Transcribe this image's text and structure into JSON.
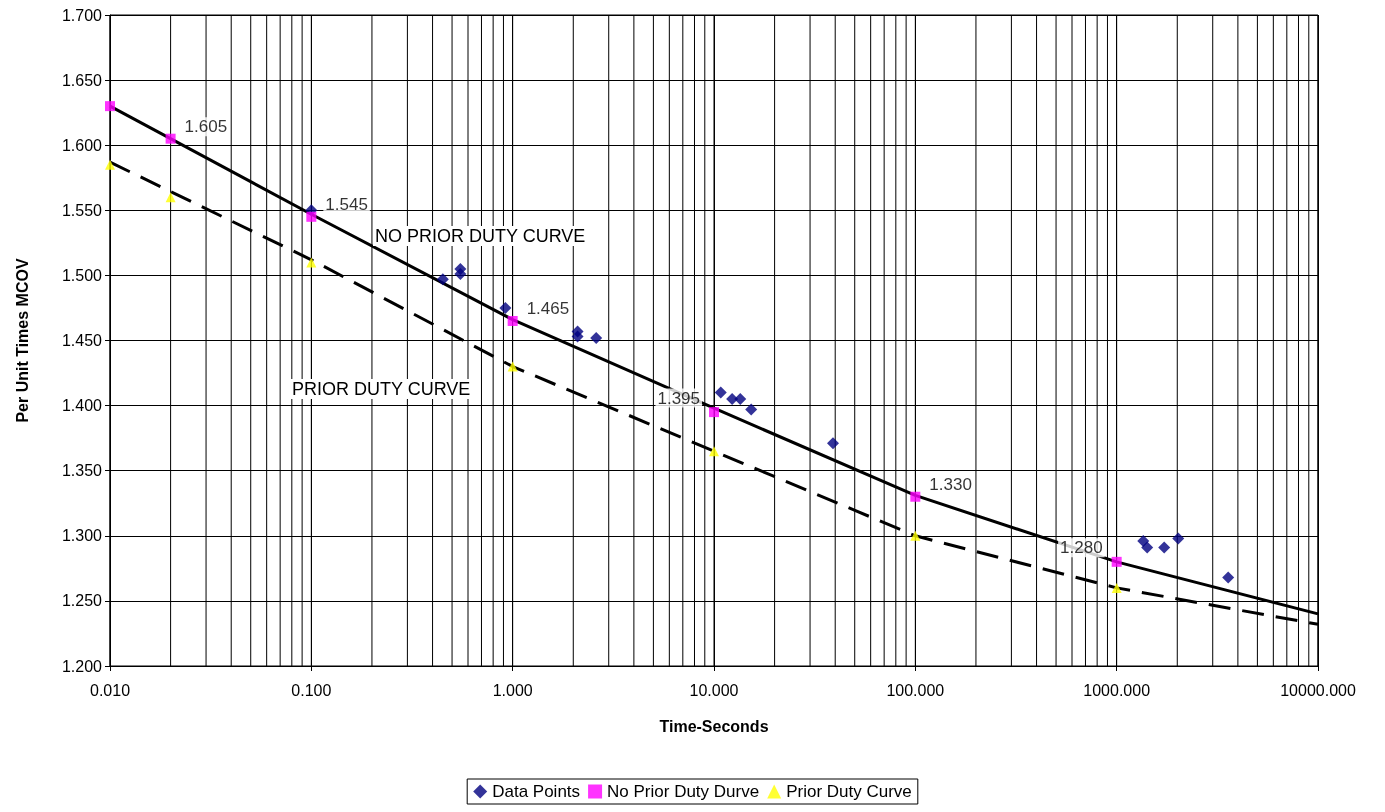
{
  "chart_data": {
    "type": "scatter",
    "xlabel": "Time-Seconds",
    "ylabel": "Per Unit Times MCOV",
    "log": "x",
    "grid": true,
    "legend": "bottom",
    "xlim": [
      0.01,
      10000
    ],
    "ylim": [
      1.2,
      1.7
    ],
    "xticks": [
      {
        "value": 0.01,
        "label": "0.010"
      },
      {
        "value": 0.02,
        "label": null
      },
      {
        "value": 0.03,
        "label": null
      },
      {
        "value": 0.04,
        "label": null
      },
      {
        "value": 0.05,
        "label": null
      },
      {
        "value": 0.06,
        "label": null
      },
      {
        "value": 0.07,
        "label": null
      },
      {
        "value": 0.08,
        "label": null
      },
      {
        "value": 0.09,
        "label": null
      },
      {
        "value": 0.1,
        "label": "0.100"
      },
      {
        "value": 0.2,
        "label": null
      },
      {
        "value": 0.3,
        "label": null
      },
      {
        "value": 0.4,
        "label": null
      },
      {
        "value": 0.5,
        "label": null
      },
      {
        "value": 0.6,
        "label": null
      },
      {
        "value": 0.7,
        "label": null
      },
      {
        "value": 0.8,
        "label": null
      },
      {
        "value": 0.9,
        "label": null
      },
      {
        "value": 1,
        "label": "1.000"
      },
      {
        "value": 2,
        "label": null
      },
      {
        "value": 3,
        "label": null
      },
      {
        "value": 4,
        "label": null
      },
      {
        "value": 5,
        "label": null
      },
      {
        "value": 6,
        "label": null
      },
      {
        "value": 7,
        "label": null
      },
      {
        "value": 8,
        "label": null
      },
      {
        "value": 9,
        "label": null
      },
      {
        "value": 10,
        "label": "10.000"
      },
      {
        "value": 20,
        "label": null
      },
      {
        "value": 30,
        "label": null
      },
      {
        "value": 40,
        "label": null
      },
      {
        "value": 50,
        "label": null
      },
      {
        "value": 60,
        "label": null
      },
      {
        "value": 70,
        "label": null
      },
      {
        "value": 80,
        "label": null
      },
      {
        "value": 90,
        "label": null
      },
      {
        "value": 100,
        "label": "100.000"
      },
      {
        "value": 200,
        "label": null
      },
      {
        "value": 300,
        "label": null
      },
      {
        "value": 400,
        "label": null
      },
      {
        "value": 500,
        "label": null
      },
      {
        "value": 600,
        "label": null
      },
      {
        "value": 700,
        "label": null
      },
      {
        "value": 800,
        "label": null
      },
      {
        "value": 900,
        "label": null
      },
      {
        "value": 1000,
        "label": "1000.000"
      },
      {
        "value": 2000,
        "label": null
      },
      {
        "value": 3000,
        "label": null
      },
      {
        "value": 4000,
        "label": null
      },
      {
        "value": 5000,
        "label": null
      },
      {
        "value": 6000,
        "label": null
      },
      {
        "value": 7000,
        "label": null
      },
      {
        "value": 8000,
        "label": null
      },
      {
        "value": 9000,
        "label": null
      },
      {
        "value": 10000,
        "label": "10000.000"
      }
    ],
    "yticks": [
      {
        "value": 1.2,
        "label": "1.200"
      },
      {
        "value": 1.25,
        "label": "1.250"
      },
      {
        "value": 1.3,
        "label": "1.300"
      },
      {
        "value": 1.35,
        "label": "1.350"
      },
      {
        "value": 1.4,
        "label": "1.400"
      },
      {
        "value": 1.45,
        "label": "1.450"
      },
      {
        "value": 1.5,
        "label": "1.500"
      },
      {
        "value": 1.55,
        "label": "1.550"
      },
      {
        "value": 1.6,
        "label": "1.600"
      },
      {
        "value": 1.65,
        "label": "1.650"
      },
      {
        "value": 1.7,
        "label": "1.700"
      }
    ],
    "annotations": [
      "NO PRIOR DUTY CURVE",
      "PRIOR DUTY CURVE"
    ],
    "series": [
      {
        "type": "line",
        "color": "#000000",
        "line_style": "solid",
        "marker": "none",
        "x": [
          0.01,
          0.1,
          1,
          10,
          100,
          1000,
          10000
        ],
        "values": [
          1.63,
          1.547,
          1.466,
          1.398,
          1.331,
          1.28,
          1.24
        ]
      },
      {
        "type": "line",
        "color": "#000000",
        "line_style": "dashed",
        "marker": "none",
        "x": [
          0.01,
          0.1,
          1,
          10,
          100,
          1000,
          10000
        ],
        "values": [
          1.587,
          1.512,
          1.43,
          1.365,
          1.3,
          1.26,
          1.232
        ]
      },
      {
        "name": "Data Points",
        "marker": "diamond",
        "color": "#000080",
        "x": [
          0.1,
          0.45,
          0.55,
          0.55,
          0.92,
          2.1,
          2.1,
          2.6,
          10.8,
          12.3,
          13.5,
          15.3,
          39,
          1355,
          1418,
          1722,
          2022,
          3580
        ],
        "values": [
          1.55,
          1.497,
          1.505,
          1.501,
          1.475,
          1.457,
          1.453,
          1.452,
          1.41,
          1.405,
          1.405,
          1.397,
          1.371,
          1.296,
          1.291,
          1.291,
          1.298,
          1.268
        ]
      },
      {
        "name": "No Prior Duty Durve",
        "marker": "square",
        "color": "#ff00ff",
        "x": [
          0.01,
          0.02,
          0.1,
          1,
          10,
          100,
          1000
        ],
        "values": [
          1.63,
          1.605,
          1.545,
          1.465,
          1.395,
          1.33,
          1.28
        ],
        "value_labels": [
          null,
          "1.605",
          "1.545",
          "1.465",
          "1.395",
          "1.330",
          "1.280"
        ]
      },
      {
        "name": "Prior Duty Curve",
        "marker": "triangle",
        "color": "#ffff00",
        "x": [
          0.01,
          0.02,
          0.1,
          1,
          10,
          100,
          1000
        ],
        "values": [
          1.585,
          1.56,
          1.51,
          1.43,
          1.365,
          1.3,
          1.26
        ]
      }
    ]
  }
}
